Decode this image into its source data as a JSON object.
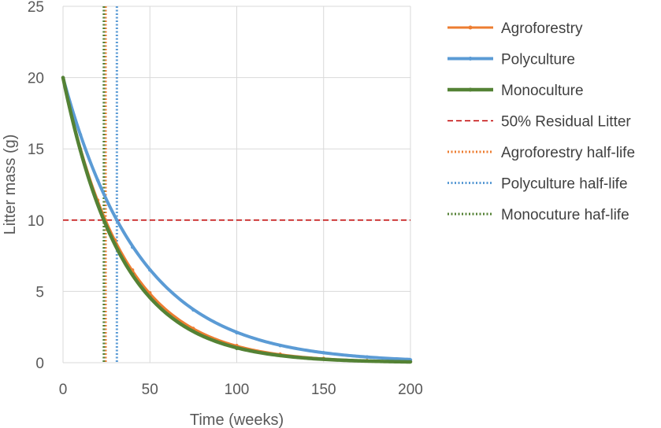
{
  "chart_data": {
    "type": "line",
    "title": "",
    "xlabel": "Time (weeks)",
    "ylabel": "Litter mass (g)",
    "xlim": [
      0,
      200
    ],
    "ylim": [
      0,
      25
    ],
    "xticks": [
      0,
      50,
      100,
      150,
      200
    ],
    "yticks": [
      0,
      5,
      10,
      15,
      20,
      25
    ],
    "grid": true,
    "legend_position": "right",
    "series": [
      {
        "name": "Agroforestry",
        "kind": "decay",
        "initial_mass": 20,
        "half_life_weeks": 24.5,
        "x": [
          0,
          10,
          20,
          24.5,
          30,
          40,
          50,
          75,
          100,
          125,
          150,
          175,
          200
        ],
        "values": [
          20,
          15.0,
          11.4,
          10,
          8.6,
          6.5,
          4.9,
          2.4,
          1.2,
          0.6,
          0.3,
          0.15,
          0.07
        ],
        "color": "#ED7D31",
        "style": "solid-markers"
      },
      {
        "name": "Polyculture",
        "kind": "decay",
        "initial_mass": 20,
        "half_life_weeks": 31,
        "x": [
          0,
          10,
          20,
          31,
          40,
          50,
          75,
          100,
          125,
          150,
          175,
          200
        ],
        "values": [
          20,
          16.0,
          12.8,
          10,
          8.1,
          6.5,
          3.7,
          2.1,
          1.2,
          0.7,
          0.4,
          0.2
        ],
        "color": "#5B9BD5",
        "style": "solid-markers"
      },
      {
        "name": "Monoculture",
        "kind": "decay",
        "initial_mass": 20,
        "half_life_weeks": 23.5,
        "x": [
          0,
          10,
          20,
          23.5,
          30,
          40,
          50,
          75,
          100,
          125,
          150,
          175,
          200
        ],
        "values": [
          20,
          14.9,
          11.1,
          10,
          8.3,
          6.2,
          4.6,
          2.2,
          1.0,
          0.5,
          0.25,
          0.12,
          0.06
        ],
        "color": "#548235",
        "style": "solid-markers"
      },
      {
        "name": "50% Residual Litter",
        "kind": "hline",
        "y": 10,
        "color": "#C00000",
        "style": "dashed"
      },
      {
        "name": "Agroforestry half-life",
        "kind": "vline",
        "x": 24.5,
        "color": "#ED7D31",
        "style": "dotted"
      },
      {
        "name": "Polyculture half-life",
        "kind": "vline",
        "x": 31,
        "color": "#5B9BD5",
        "style": "dotted"
      },
      {
        "name": "Monocuture haf-life",
        "kind": "vline",
        "x": 23.5,
        "color": "#548235",
        "style": "dotted"
      }
    ]
  }
}
